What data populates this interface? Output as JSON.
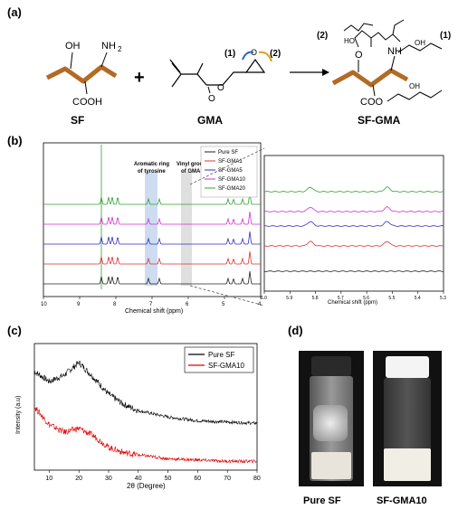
{
  "panels": {
    "a": {
      "label": "(a)",
      "sf": {
        "name": "SF",
        "oh": "OH",
        "nh2": "NH",
        "nh2_sub": "2",
        "cooh": "COOH"
      },
      "plus": "+",
      "gma": {
        "name": "GMA",
        "site1": "(1)",
        "site2": "(2)"
      },
      "product": {
        "name": "SF-GMA",
        "site1": "(1)",
        "site2": "(2)",
        "o": "O",
        "nh": "NH",
        "coo": "COO",
        "oh_a": "HO",
        "oh_b": "OH",
        "oh_c": "OH"
      }
    },
    "b": {
      "label": "(b)",
      "legend": [
        "Pure SF",
        "SF-GMA1",
        "SF-GMA5",
        "SF-GMA10",
        "SF-GMA20"
      ],
      "annotation_aromatic": [
        "Aromatic ring",
        "of tyrosine"
      ],
      "annotation_vinyl": [
        "Vinyl group",
        "of GMA"
      ],
      "xlabel": "Chemical shift (ppm)",
      "xticks": [
        "10",
        "9",
        "8",
        "7",
        "6",
        "5",
        "4"
      ],
      "zoom_xlabel": "Chemical shift (ppm)",
      "zoom_xticks": [
        "6.0",
        "5.9",
        "5.8",
        "5.7",
        "5.6",
        "5.5",
        "5.4",
        "5.3"
      ]
    },
    "c": {
      "label": "(c)",
      "legend": [
        "Pure SF",
        "SF-GMA10"
      ],
      "xlabel": "2θ (Degree)",
      "ylabel": "Intensity (a.u)",
      "xticks": [
        "10",
        "20",
        "30",
        "40",
        "50",
        "60",
        "70",
        "80"
      ]
    },
    "d": {
      "label": "(d)",
      "captions": [
        "Pure SF",
        "SF-GMA10"
      ]
    }
  },
  "chart_data": [
    {
      "type": "line",
      "xlabel": "Chemical shift (ppm)",
      "xlim": [
        10,
        4
      ],
      "series": [
        {
          "name": "Pure SF",
          "color": "#222222",
          "peaks": [
            8.4,
            8.2,
            8.1,
            7.95,
            7.1,
            6.8,
            4.9,
            4.75,
            4.5,
            4.3
          ]
        },
        {
          "name": "SF-GMA1",
          "color": "#e03030",
          "peaks": [
            8.4,
            8.2,
            8.1,
            7.95,
            7.1,
            6.8,
            4.9,
            4.75,
            4.5,
            4.3
          ]
        },
        {
          "name": "SF-GMA5",
          "color": "#3030c0",
          "peaks": [
            8.4,
            8.2,
            8.1,
            7.95,
            7.1,
            6.8,
            4.9,
            4.75,
            4.5,
            4.3
          ]
        },
        {
          "name": "SF-GMA10",
          "color": "#d030d0",
          "peaks": [
            8.4,
            8.2,
            8.1,
            7.95,
            7.1,
            6.8,
            4.9,
            4.75,
            4.5,
            4.3
          ]
        },
        {
          "name": "SF-GMA20",
          "color": "#30a030",
          "peaks": [
            8.4,
            8.2,
            8.1,
            7.95,
            7.1,
            6.8,
            4.9,
            4.75,
            4.5,
            4.3
          ]
        }
      ]
    },
    {
      "type": "line",
      "xlabel": "Chemical shift (ppm)",
      "xlim": [
        6.0,
        5.3
      ],
      "series": [
        {
          "name": "Pure SF",
          "color": "#222222",
          "peaks": []
        },
        {
          "name": "SF-GMA1",
          "color": "#e03030",
          "peaks": [
            5.82,
            5.52
          ]
        },
        {
          "name": "SF-GMA5",
          "color": "#3030c0",
          "peaks": [
            5.82,
            5.52
          ]
        },
        {
          "name": "SF-GMA10",
          "color": "#d030d0",
          "peaks": [
            5.82,
            5.52
          ]
        },
        {
          "name": "SF-GMA20",
          "color": "#30a030",
          "peaks": [
            5.82,
            5.52
          ]
        }
      ]
    },
    {
      "type": "line",
      "xlabel": "2θ (Degree)",
      "ylabel": "Intensity (a.u)",
      "xlim": [
        5,
        80
      ],
      "series": [
        {
          "name": "Pure SF",
          "color": "#000000",
          "x": [
            5,
            10,
            15,
            20,
            25,
            30,
            35,
            40,
            50,
            60,
            70,
            80
          ],
          "y": [
            0.78,
            0.7,
            0.75,
            0.85,
            0.73,
            0.6,
            0.52,
            0.47,
            0.42,
            0.39,
            0.38,
            0.37
          ]
        },
        {
          "name": "SF-GMA10",
          "color": "#e00000",
          "x": [
            5,
            10,
            15,
            20,
            25,
            30,
            35,
            40,
            50,
            60,
            70,
            80
          ],
          "y": [
            0.5,
            0.36,
            0.3,
            0.33,
            0.27,
            0.18,
            0.14,
            0.12,
            0.09,
            0.08,
            0.07,
            0.07
          ]
        }
      ]
    }
  ]
}
